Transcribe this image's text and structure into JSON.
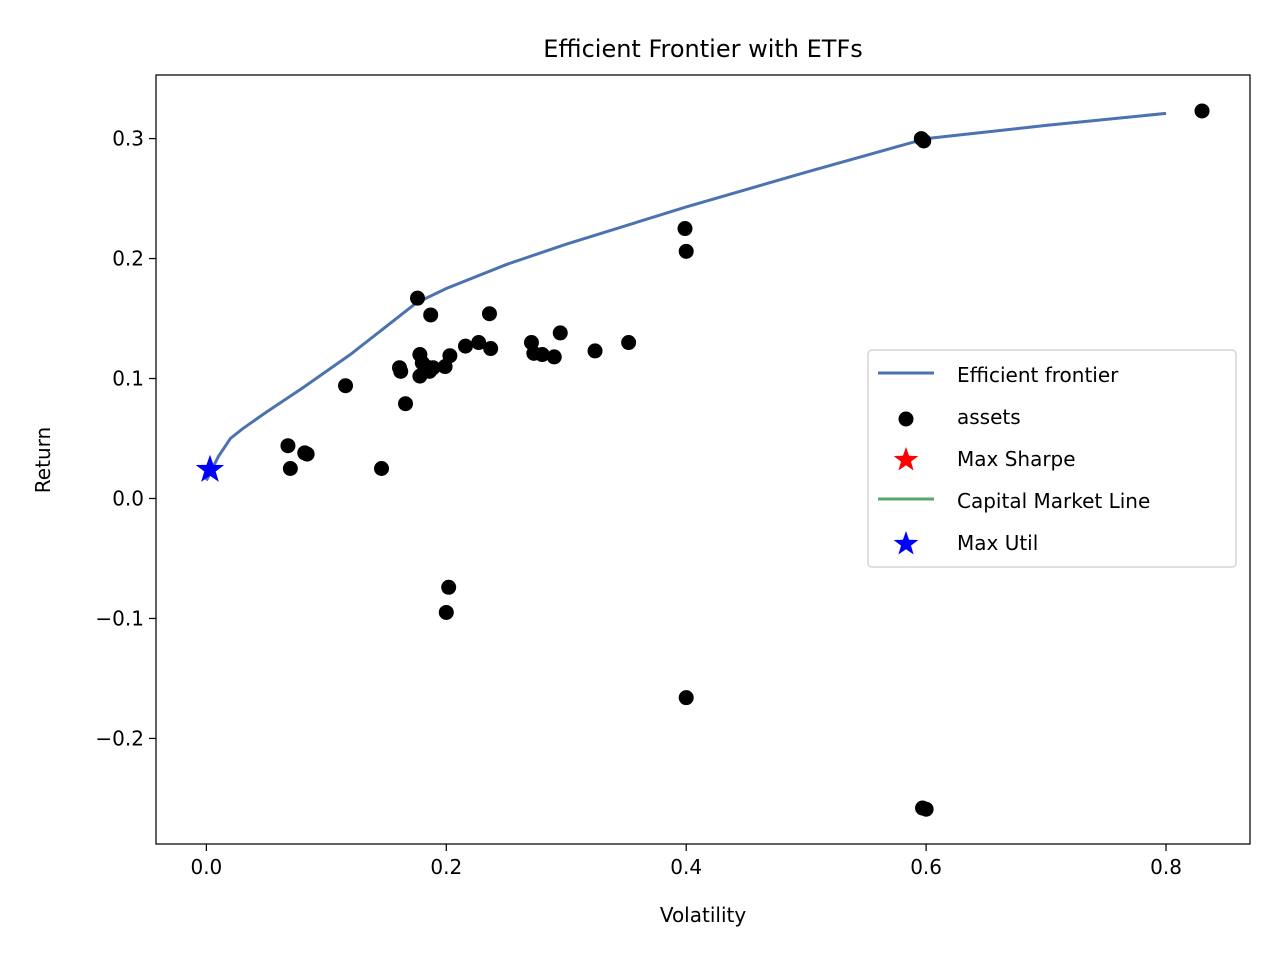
{
  "chart_data": {
    "type": "scatter",
    "title": "Efficient Frontier with ETFs",
    "xlabel": "Volatility",
    "ylabel": "Return",
    "xlim": [
      -0.042,
      0.87
    ],
    "ylim": [
      -0.288,
      0.353
    ],
    "x_ticks": [
      {
        "value": 0.0,
        "label": "0.0"
      },
      {
        "value": 0.2,
        "label": "0.2"
      },
      {
        "value": 0.4,
        "label": "0.4"
      },
      {
        "value": 0.6,
        "label": "0.6"
      },
      {
        "value": 0.8,
        "label": "0.8"
      }
    ],
    "y_ticks": [
      {
        "value": -0.2,
        "label": "−0.2"
      },
      {
        "value": -0.1,
        "label": "−0.1"
      },
      {
        "value": 0.0,
        "label": "0.0"
      },
      {
        "value": 0.1,
        "label": "0.1"
      },
      {
        "value": 0.2,
        "label": "0.2"
      },
      {
        "value": 0.3,
        "label": "0.3"
      }
    ],
    "grid": false,
    "legend_position": "center-right",
    "series": [
      {
        "name": "Efficient frontier",
        "kind": "line",
        "color": "#4c72b0",
        "x": [
          0.0,
          0.005,
          0.01,
          0.02,
          0.03,
          0.05,
          0.08,
          0.12,
          0.175,
          0.2,
          0.25,
          0.3,
          0.4,
          0.5,
          0.6,
          0.7,
          0.8
        ],
        "y": [
          0.015,
          0.025,
          0.035,
          0.05,
          0.058,
          0.072,
          0.092,
          0.12,
          0.163,
          0.175,
          0.195,
          0.212,
          0.243,
          0.272,
          0.3,
          0.311,
          0.321
        ]
      },
      {
        "name": "assets",
        "kind": "scatter",
        "color": "#000000",
        "points": [
          [
            0.068,
            0.044
          ],
          [
            0.07,
            0.025
          ],
          [
            0.082,
            0.038
          ],
          [
            0.084,
            0.037
          ],
          [
            0.116,
            0.094
          ],
          [
            0.146,
            0.025
          ],
          [
            0.161,
            0.109
          ],
          [
            0.162,
            0.106
          ],
          [
            0.166,
            0.079
          ],
          [
            0.176,
            0.167
          ],
          [
            0.178,
            0.12
          ],
          [
            0.178,
            0.102
          ],
          [
            0.18,
            0.113
          ],
          [
            0.183,
            0.11
          ],
          [
            0.186,
            0.106
          ],
          [
            0.187,
            0.153
          ],
          [
            0.189,
            0.109
          ],
          [
            0.199,
            0.11
          ],
          [
            0.2,
            -0.095
          ],
          [
            0.202,
            -0.074
          ],
          [
            0.203,
            0.119
          ],
          [
            0.216,
            0.127
          ],
          [
            0.227,
            0.13
          ],
          [
            0.236,
            0.154
          ],
          [
            0.237,
            0.125
          ],
          [
            0.271,
            0.13
          ],
          [
            0.273,
            0.121
          ],
          [
            0.28,
            0.12
          ],
          [
            0.29,
            0.118
          ],
          [
            0.295,
            0.138
          ],
          [
            0.324,
            0.123
          ],
          [
            0.352,
            0.13
          ],
          [
            0.399,
            0.225
          ],
          [
            0.4,
            0.206
          ],
          [
            0.4,
            -0.166
          ],
          [
            0.596,
            0.3
          ],
          [
            0.598,
            0.298
          ],
          [
            0.597,
            -0.258
          ],
          [
            0.6,
            -0.259
          ],
          [
            0.83,
            0.323
          ]
        ]
      },
      {
        "name": "Max Sharpe",
        "kind": "marker",
        "color": "#ff0000",
        "points": []
      },
      {
        "name": "Capital Market Line",
        "kind": "line",
        "color": "#55a868",
        "x": [],
        "y": []
      },
      {
        "name": "Max Util",
        "kind": "marker",
        "color": "#0000ff",
        "points": [
          [
            0.003,
            0.024
          ]
        ]
      }
    ]
  }
}
